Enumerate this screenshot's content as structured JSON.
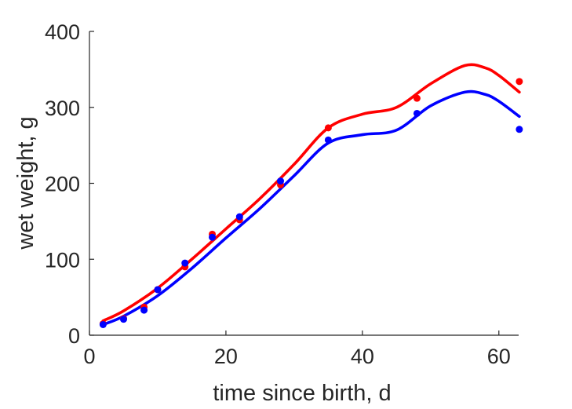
{
  "chart_data": {
    "type": "scatter",
    "title": "",
    "xlabel": "time since birth, d",
    "ylabel": "wet weight, g",
    "xlim": [
      0,
      63
    ],
    "ylim": [
      0,
      400
    ],
    "xticks": [
      0,
      20,
      40,
      60
    ],
    "yticks": [
      0,
      100,
      200,
      300,
      400
    ],
    "grid": false,
    "legend": "none",
    "series": [
      {
        "color": "#ff0000",
        "points": {
          "x": [
            2,
            5,
            8,
            10,
            14,
            18,
            22,
            28,
            35,
            48,
            63
          ],
          "y": [
            15,
            22,
            37,
            60,
            90,
            133,
            152,
            198,
            273,
            312,
            334
          ]
        },
        "curve": {
          "x": [
            2,
            5,
            10,
            15,
            20,
            25,
            30,
            35,
            40,
            45,
            50,
            55,
            58,
            60,
            63
          ],
          "y": [
            19,
            32,
            62,
            100,
            140,
            180,
            225,
            273,
            291,
            300,
            331,
            355,
            352,
            342,
            320
          ]
        }
      },
      {
        "color": "#0000ff",
        "points": {
          "x": [
            2,
            5,
            8,
            10,
            14,
            18,
            22,
            28,
            35,
            48,
            63
          ],
          "y": [
            14,
            21,
            33,
            60,
            95,
            129,
            156,
            203,
            257,
            292,
            271
          ]
        },
        "curve": {
          "x": [
            2,
            5,
            10,
            15,
            20,
            25,
            30,
            35,
            40,
            45,
            50,
            55,
            58,
            60,
            63
          ],
          "y": [
            14,
            25,
            52,
            88,
            128,
            167,
            210,
            253,
            264,
            270,
            302,
            320,
            317,
            308,
            288
          ]
        }
      }
    ]
  }
}
